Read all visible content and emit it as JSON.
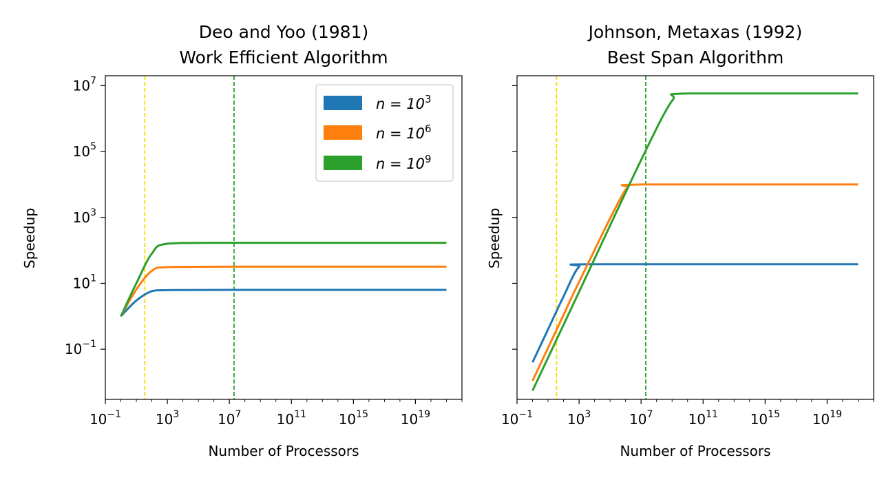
{
  "chart_data": [
    {
      "type": "line",
      "title": "Deo and Yoo (1981)",
      "subtitle": "Work Efficient Algorithm",
      "xlabel": "Number of Processors",
      "ylabel": "Speedup",
      "xscale": "log",
      "yscale": "log",
      "xlim": [
        0.1,
        1e+22
      ],
      "ylim": [
        0.003,
        20000000
      ],
      "xticks": [
        {
          "base": "10",
          "exp": "−1"
        },
        {
          "base": "10",
          "exp": "3"
        },
        {
          "base": "10",
          "exp": "7"
        },
        {
          "base": "10",
          "exp": "11"
        },
        {
          "base": "10",
          "exp": "15"
        },
        {
          "base": "10",
          "exp": "19"
        }
      ],
      "yticks": [
        {
          "base": "10",
          "exp": "7"
        },
        {
          "base": "10",
          "exp": "5"
        },
        {
          "base": "10",
          "exp": "3"
        },
        {
          "base": "10",
          "exp": "1"
        },
        {
          "base": "10",
          "exp": "−1"
        }
      ],
      "grid": false,
      "legend": "top-right",
      "legend_entries": [
        {
          "prefix": "n = 10",
          "exp": "3",
          "color": "#1f77b4"
        },
        {
          "prefix": "n = 10",
          "exp": "6",
          "color": "#ff7f0e"
        },
        {
          "prefix": "n = 10",
          "exp": "9",
          "color": "#2ca02c"
        }
      ],
      "series": [
        {
          "color": "#1f77b4",
          "x": [
            1,
            10,
            100,
            1000,
            10000000,
            1e+21
          ],
          "y": [
            1,
            3.0,
            5.8,
            6.2,
            6.3,
            6.3
          ]
        },
        {
          "color": "#ff7f0e",
          "x": [
            1,
            10,
            100,
            1000,
            10000000,
            1e+21
          ],
          "y": [
            1,
            6.5,
            24,
            31,
            32,
            32
          ]
        },
        {
          "color": "#2ca02c",
          "x": [
            1,
            10,
            100,
            1000,
            10000000,
            1e+21
          ],
          "y": [
            1,
            10,
            80,
            160,
            170,
            170
          ]
        }
      ],
      "vlines": [
        {
          "x": 35,
          "color": "#f5e000",
          "style": "dashed"
        },
        {
          "x": 20000000,
          "color": "#2ca02c",
          "style": "dashed"
        }
      ]
    },
    {
      "type": "line",
      "title": "Johnson, Metaxas (1992)",
      "subtitle": "Best Span Algorithm",
      "xlabel": "Number of Processors",
      "ylabel": "Speedup",
      "xscale": "log",
      "yscale": "log",
      "xlim": [
        0.1,
        1e+22
      ],
      "ylim": [
        0.003,
        20000000
      ],
      "shared_y": true,
      "xticks": [
        {
          "base": "10",
          "exp": "−1"
        },
        {
          "base": "10",
          "exp": "3"
        },
        {
          "base": "10",
          "exp": "7"
        },
        {
          "base": "10",
          "exp": "11"
        },
        {
          "base": "10",
          "exp": "15"
        },
        {
          "base": "10",
          "exp": "19"
        }
      ],
      "grid": false,
      "series": [
        {
          "color": "#1f77b4",
          "x": [
            1,
            10,
            100,
            1000,
            10000,
            1e+21
          ],
          "y": [
            0.04,
            0.4,
            4.0,
            32,
            38,
            38
          ]
        },
        {
          "color": "#ff7f0e",
          "x": [
            1,
            10,
            100,
            1000,
            1000000,
            10000000,
            1e+21
          ],
          "y": [
            0.011,
            0.11,
            1.1,
            11,
            7000,
            10000,
            10000
          ]
        },
        {
          "color": "#2ca02c",
          "x": [
            1,
            10,
            100,
            1000,
            10000000,
            1000000000,
            10000000000,
            1e+21
          ],
          "y": [
            0.0055,
            0.055,
            0.55,
            5.5,
            55000,
            3500000,
            5800000,
            5800000
          ]
        }
      ],
      "vlines": [
        {
          "x": 35,
          "color": "#f5e000",
          "style": "dashed"
        },
        {
          "x": 20000000,
          "color": "#2ca02c",
          "style": "dashed"
        }
      ]
    }
  ]
}
